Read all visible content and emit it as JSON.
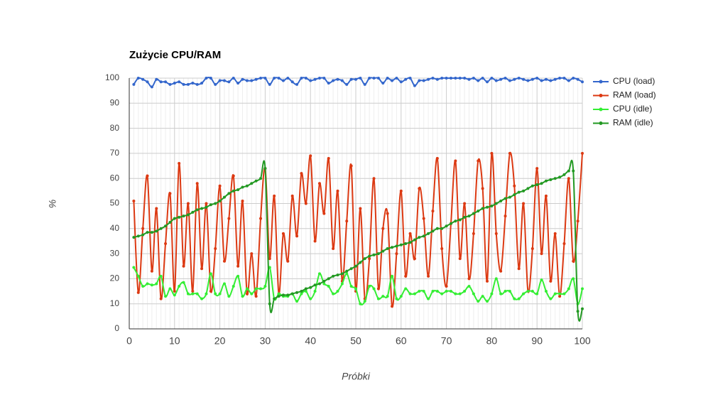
{
  "chart_data": {
    "type": "line",
    "title": "Zużycie CPU/RAM",
    "x_label": "Próbki",
    "y_label": "%",
    "x": [
      1,
      2,
      3,
      4,
      5,
      6,
      7,
      8,
      9,
      10,
      11,
      12,
      13,
      14,
      15,
      16,
      17,
      18,
      19,
      20,
      21,
      22,
      23,
      24,
      25,
      26,
      27,
      28,
      29,
      30,
      31,
      32,
      33,
      34,
      35,
      36,
      37,
      38,
      39,
      40,
      41,
      42,
      43,
      44,
      45,
      46,
      47,
      48,
      49,
      50,
      51,
      52,
      53,
      54,
      55,
      56,
      57,
      58,
      59,
      60,
      61,
      62,
      63,
      64,
      65,
      66,
      67,
      68,
      69,
      70,
      71,
      72,
      73,
      74,
      75,
      76,
      77,
      78,
      79,
      80,
      81,
      82,
      83,
      84,
      85,
      86,
      87,
      88,
      89,
      90,
      91,
      92,
      93,
      94,
      95,
      96,
      97,
      98,
      99,
      100
    ],
    "xlim": [
      0,
      100
    ],
    "xticks": [
      0,
      10,
      20,
      30,
      40,
      50,
      60,
      70,
      80,
      90,
      100
    ],
    "ylim": [
      0,
      100
    ],
    "yticks": [
      0,
      10,
      20,
      30,
      40,
      50,
      60,
      70,
      80,
      90,
      100
    ],
    "grid": true,
    "legend": "right",
    "series": [
      {
        "name": "CPU (load)",
        "color": "#3366cc",
        "values": [
          97.5,
          100,
          99.5,
          98.5,
          96.5,
          99.5,
          98.5,
          98.5,
          97.5,
          98,
          98.5,
          97.5,
          97.5,
          98,
          97.5,
          98,
          100,
          100,
          97.5,
          99,
          99,
          98.5,
          100,
          98,
          99.5,
          99,
          99,
          99.5,
          100,
          100,
          97.5,
          100,
          100,
          99,
          100,
          98.5,
          97.5,
          100,
          100,
          99,
          99.5,
          100,
          100,
          98,
          99,
          99.5,
          99,
          97.5,
          99.5,
          99.5,
          100,
          97.5,
          100,
          100,
          100,
          98,
          100,
          99,
          100,
          98.5,
          99.5,
          100,
          97,
          99,
          99,
          99.5,
          100,
          99.5,
          100,
          100,
          100,
          100,
          100,
          100,
          99.5,
          100,
          99,
          100,
          98.5,
          100,
          99,
          99.5,
          100,
          99,
          99.5,
          100,
          99.5,
          99,
          99.5,
          100,
          99,
          99.5,
          99,
          99.5,
          100,
          100,
          99,
          100,
          99.5,
          98.5
        ]
      },
      {
        "name": "RAM (load)",
        "color": "#dc3912",
        "values": [
          51,
          14.5,
          40,
          61,
          23,
          48,
          12,
          34,
          54,
          15,
          66,
          25,
          50,
          15,
          58,
          24,
          50,
          15,
          32,
          57,
          27,
          44,
          61,
          25,
          51,
          14,
          30,
          13,
          44,
          64,
          28,
          53,
          14,
          38,
          27,
          53,
          37,
          62,
          50,
          69,
          35,
          58,
          46,
          68,
          32,
          55,
          19,
          43,
          65,
          15,
          48,
          12,
          28,
          60,
          16,
          40,
          46,
          9,
          30,
          55,
          21,
          38,
          28,
          56,
          44,
          21,
          47,
          68,
          32,
          17,
          42,
          67,
          28,
          50,
          20,
          38,
          67,
          56,
          19,
          70,
          38,
          23,
          45,
          70,
          57,
          24,
          50,
          15,
          32,
          64,
          30,
          53,
          19,
          38,
          13,
          34,
          60,
          27,
          43,
          70
        ]
      },
      {
        "name": "CPU (idle)",
        "color": "#33ee33",
        "values": [
          24.5,
          21,
          17,
          18,
          17.5,
          18,
          21,
          13,
          16,
          13.5,
          17,
          18.5,
          14,
          14,
          14,
          12,
          14,
          22,
          14,
          14,
          18,
          13,
          17,
          21,
          13,
          16,
          14,
          16,
          16,
          17,
          24.5,
          12,
          14,
          13,
          13,
          14,
          11,
          14,
          15,
          12,
          15,
          22,
          18,
          17,
          14,
          15,
          18,
          22,
          17,
          16,
          10,
          11,
          17,
          16,
          12,
          13,
          13,
          21,
          12,
          13,
          16,
          14,
          14,
          15,
          15,
          12,
          15,
          15,
          14,
          15,
          15,
          14,
          14,
          15,
          17,
          14,
          11,
          13,
          11,
          14,
          20,
          14,
          15,
          15,
          12,
          12,
          14,
          15,
          15,
          14,
          19.5,
          15,
          12,
          14,
          14,
          14,
          16,
          20,
          10,
          16
        ]
      },
      {
        "name": "RAM (idle)",
        "color": "#229922",
        "values": [
          36.5,
          37,
          37.5,
          38.5,
          38.5,
          39,
          40,
          41,
          42.5,
          44,
          44.5,
          45,
          45.5,
          46.5,
          47.5,
          48,
          48.5,
          49.5,
          50,
          51,
          52.5,
          54,
          55,
          55.5,
          56.5,
          57,
          58,
          59,
          60,
          64,
          10,
          12,
          13,
          13.5,
          13.5,
          14,
          14.5,
          15,
          16,
          16.5,
          17.5,
          18,
          19,
          20,
          21,
          21.5,
          22,
          23,
          24,
          25,
          26.5,
          28,
          29,
          29.5,
          30,
          31,
          32,
          32.5,
          33,
          33.5,
          34,
          34.5,
          35.5,
          36.5,
          37,
          38,
          39,
          40,
          40,
          41,
          42,
          43,
          43.5,
          44.5,
          45,
          46,
          47,
          48,
          48.5,
          49,
          50,
          51,
          52,
          52.5,
          53.5,
          54.5,
          55,
          56,
          57,
          57.5,
          58,
          59,
          59.5,
          60,
          60.5,
          61.5,
          63,
          63,
          7,
          8
        ]
      }
    ]
  }
}
